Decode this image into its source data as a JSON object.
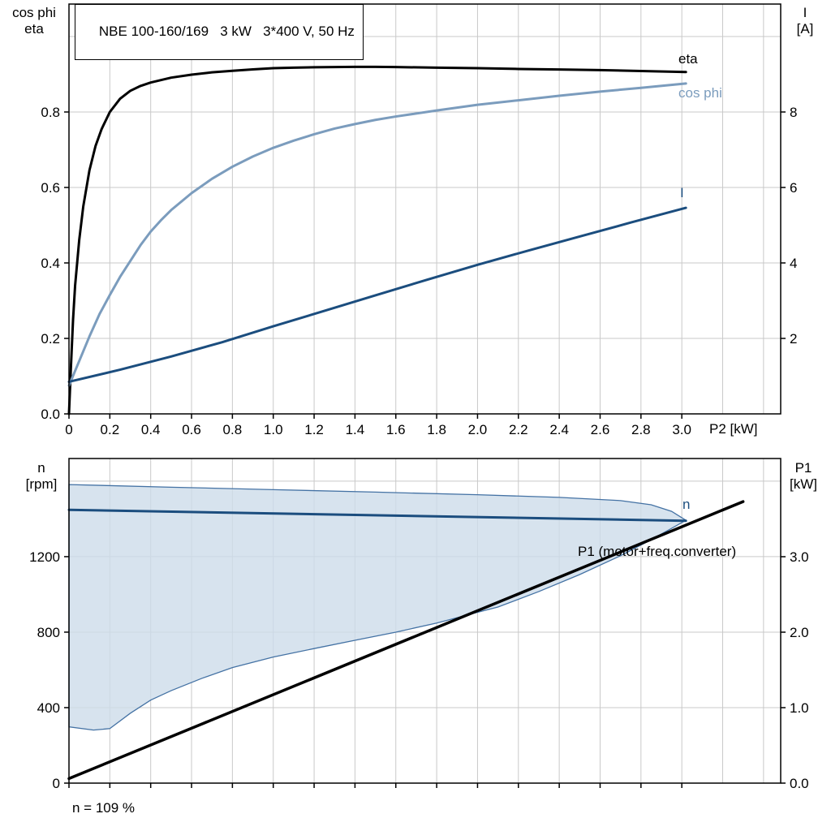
{
  "chart_data": [
    {
      "type": "line",
      "title": "NBE 100-160/169   3 kW   3*400 V, 50 Hz",
      "x_axis": {
        "label": "P2 [kW]",
        "min": 0,
        "max": 3.484,
        "ticks": [
          0,
          0.2,
          0.4,
          0.6,
          0.8,
          1.0,
          1.2,
          1.4,
          1.6,
          1.8,
          2.0,
          2.2,
          2.4,
          2.6,
          2.8,
          3.0
        ],
        "tick_labels": [
          "0",
          "0.2",
          "0.4",
          "0.6",
          "0.8",
          "1.0",
          "1.2",
          "1.4",
          "1.6",
          "1.8",
          "2.0",
          "2.2",
          "2.4",
          "2.6",
          "2.8",
          "3.0"
        ],
        "grid": [
          0.2,
          0.4,
          0.6,
          0.8,
          1.0,
          1.2,
          1.4,
          1.6,
          1.8,
          2.0,
          2.2,
          2.4,
          2.6,
          2.8,
          3.0,
          3.2,
          3.4
        ]
      },
      "y_left": {
        "label_lines": [
          "cos phi",
          "eta"
        ],
        "min": 0,
        "max": 1.086,
        "ticks": [
          0,
          0.2,
          0.4,
          0.6,
          0.8
        ],
        "tick_labels": [
          "0.0",
          "0.2",
          "0.4",
          "0.6",
          "0.8"
        ],
        "grid": [
          0.2,
          0.4,
          0.6,
          0.8,
          1.0
        ]
      },
      "y_right": {
        "label_lines": [
          "I",
          "[A]"
        ],
        "min": 0,
        "max": 10.86,
        "ticks": [
          2,
          4,
          6,
          8
        ],
        "tick_labels": [
          "2",
          "4",
          "6",
          "8"
        ]
      },
      "series": [
        {
          "name": "eta",
          "axis": "left",
          "color": "#000000",
          "width": 3,
          "x": [
            0,
            0.01,
            0.02,
            0.03,
            0.05,
            0.07,
            0.1,
            0.13,
            0.16,
            0.2,
            0.25,
            0.3,
            0.35,
            0.4,
            0.5,
            0.6,
            0.7,
            0.8,
            0.9,
            1.0,
            1.1,
            1.2,
            1.3,
            1.4,
            1.5,
            1.6,
            1.8,
            2.0,
            2.2,
            2.4,
            2.6,
            2.8,
            3.02
          ],
          "y": [
            0,
            0.13,
            0.25,
            0.34,
            0.46,
            0.55,
            0.645,
            0.71,
            0.755,
            0.8,
            0.835,
            0.856,
            0.869,
            0.878,
            0.891,
            0.899,
            0.905,
            0.909,
            0.913,
            0.916,
            0.9175,
            0.9185,
            0.919,
            0.9195,
            0.9195,
            0.919,
            0.9175,
            0.916,
            0.914,
            0.9125,
            0.911,
            0.9085,
            0.906
          ]
        },
        {
          "name": "cos phi",
          "axis": "left",
          "color": "#7b9cbd",
          "width": 3,
          "x": [
            0,
            0.05,
            0.1,
            0.15,
            0.2,
            0.25,
            0.3,
            0.35,
            0.4,
            0.45,
            0.5,
            0.6,
            0.7,
            0.8,
            0.9,
            1.0,
            1.1,
            1.2,
            1.3,
            1.4,
            1.5,
            1.6,
            1.8,
            2.0,
            2.2,
            2.4,
            2.6,
            2.8,
            3.02
          ],
          "y": [
            0.075,
            0.14,
            0.205,
            0.265,
            0.315,
            0.363,
            0.405,
            0.447,
            0.483,
            0.513,
            0.54,
            0.585,
            0.623,
            0.655,
            0.682,
            0.705,
            0.724,
            0.741,
            0.756,
            0.768,
            0.779,
            0.788,
            0.804,
            0.819,
            0.831,
            0.843,
            0.854,
            0.864,
            0.8755
          ]
        },
        {
          "name": "I",
          "axis": "right",
          "color": "#1b4d7e",
          "width": 3,
          "x": [
            0,
            0.25,
            0.5,
            0.75,
            1.0,
            1.25,
            1.5,
            1.75,
            2.0,
            2.25,
            2.5,
            2.75,
            3.02
          ],
          "y": [
            0.85,
            1.17,
            1.52,
            1.9,
            2.32,
            2.73,
            3.14,
            3.55,
            3.95,
            4.33,
            4.7,
            5.07,
            5.46
          ]
        }
      ]
    },
    {
      "type": "line",
      "x_axis": {
        "label": "",
        "min": 0,
        "max": 3.484,
        "ticks": [
          0,
          0.2,
          0.4,
          0.6,
          0.8,
          1.0,
          1.2,
          1.4,
          1.6,
          1.8,
          2.0,
          2.2,
          2.4,
          2.6,
          2.8,
          3.0
        ],
        "grid": [
          0.2,
          0.4,
          0.6,
          0.8,
          1.0,
          1.2,
          1.4,
          1.6,
          1.8,
          2.0,
          2.2,
          2.4,
          2.6,
          2.8,
          3.0,
          3.2,
          3.4
        ]
      },
      "y_left": {
        "label_lines": [
          "n",
          "[rpm]"
        ],
        "min": 0,
        "max": 1720,
        "ticks": [
          0,
          400,
          800,
          1200
        ],
        "tick_labels": [
          "0",
          "400",
          "800",
          "1200"
        ],
        "grid": [
          400,
          800,
          1200,
          1600
        ]
      },
      "y_right": {
        "label_lines": [
          "P1",
          "[kW]"
        ],
        "min": 0,
        "max": 4.301,
        "ticks": [
          0,
          1,
          2,
          3
        ],
        "tick_labels": [
          "0.0",
          "1.0",
          "2.0",
          "3.0"
        ]
      },
      "band": {
        "name": "speed-control-range",
        "fill": "#cddcea",
        "edge": "#4472a4",
        "upper": {
          "x": [
            0,
            0.5,
            1.0,
            1.5,
            2.0,
            2.4,
            2.7,
            2.85,
            2.95,
            3.02
          ],
          "y": [
            1582,
            1568,
            1555,
            1542,
            1528,
            1514,
            1497,
            1475,
            1440,
            1393
          ]
        },
        "lower": {
          "x": [
            0,
            0.12,
            0.2,
            0.3,
            0.4,
            0.5,
            0.65,
            0.8,
            1.0,
            1.2,
            1.4,
            1.6,
            1.8,
            2.0,
            2.1,
            2.3,
            2.5,
            2.7,
            2.85,
            2.95,
            3.02
          ],
          "y": [
            298,
            281,
            289,
            370,
            440,
            490,
            555,
            612,
            668,
            713,
            757,
            800,
            848,
            905,
            933,
            1015,
            1105,
            1205,
            1290,
            1350,
            1393
          ]
        }
      },
      "series": [
        {
          "name": "n",
          "axis": "left",
          "color": "#1b4d7e",
          "width": 3,
          "x": [
            0,
            3.02
          ],
          "y": [
            1448,
            1390
          ]
        },
        {
          "name": "P1 (motor+freq.converter)",
          "axis": "right",
          "color": "#000000",
          "width": 3.5,
          "x": [
            0,
            3.3
          ],
          "y": [
            0.06,
            3.73
          ]
        }
      ],
      "footnote": "n = 109 %"
    }
  ]
}
